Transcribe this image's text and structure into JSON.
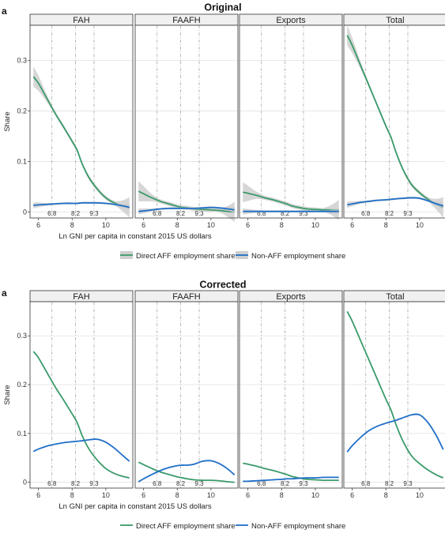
{
  "figure": {
    "x_axis_label": "Ln GNI per capita in constant 2015 US dollars",
    "y_axis_label": "Share",
    "legend": {
      "direct_label": "Direct AFF employment share",
      "nonaff_label": "Non-AFF employment share"
    },
    "colors": {
      "direct": "#3a9a6a",
      "nonaff": "#1f6fc8",
      "band": "#c8c8c8",
      "strip": "#f0f0f0"
    }
  },
  "chart_data": [
    {
      "type": "line",
      "section_title": "Original",
      "panel_letter": "a",
      "facets": [
        "FAH",
        "FAAFH",
        "Exports",
        "Total"
      ],
      "x_ticks": [
        6,
        8,
        10
      ],
      "xlim": [
        5.5,
        11.6
      ],
      "y_ticks": [
        0,
        0.1,
        0.2,
        0.3
      ],
      "y_tick_labels": [
        "0",
        "0.1",
        "0.2",
        "0.3"
      ],
      "ylim": [
        -0.012,
        0.37
      ],
      "vlines": [
        6.8,
        8.2,
        9.3
      ],
      "vline_labels": [
        "6.8",
        "8.2",
        "9.3"
      ],
      "confidence_band": true,
      "x": [
        5.7,
        6.0,
        6.5,
        7.0,
        7.5,
        8.0,
        8.3,
        8.6,
        9.0,
        9.5,
        10.0,
        10.5,
        11.0,
        11.4
      ],
      "panels": [
        {
          "facet": "FAH",
          "series": [
            {
              "name": "Direct AFF employment share",
              "values": [
                0.268,
                0.255,
                0.225,
                0.195,
                0.168,
                0.14,
                0.122,
                0.095,
                0.068,
                0.045,
                0.028,
                0.018,
                0.012,
                0.009
              ]
            },
            {
              "name": "Non-AFF employment share",
              "values": [
                0.013,
                0.014,
                0.015,
                0.016,
                0.017,
                0.017,
                0.017,
                0.018,
                0.018,
                0.018,
                0.017,
                0.015,
                0.012,
                0.009
              ]
            }
          ]
        },
        {
          "facet": "FAAFH",
          "series": [
            {
              "name": "Direct AFF employment share",
              "values": [
                0.041,
                0.036,
                0.028,
                0.021,
                0.016,
                0.011,
                0.009,
                0.008,
                0.006,
                0.005,
                0.004,
                0.003,
                0.001,
                0.0
              ]
            },
            {
              "name": "Non-AFF employment share",
              "values": [
                0.001,
                0.002,
                0.004,
                0.006,
                0.007,
                0.007,
                0.007,
                0.007,
                0.007,
                0.008,
                0.009,
                0.008,
                0.006,
                0.004
              ]
            }
          ]
        },
        {
          "facet": "Exports",
          "series": [
            {
              "name": "Direct AFF employment share",
              "values": [
                0.039,
                0.037,
                0.033,
                0.028,
                0.024,
                0.019,
                0.016,
                0.012,
                0.009,
                0.006,
                0.005,
                0.004,
                0.004,
                0.004
              ]
            },
            {
              "name": "Non-AFF employment share",
              "values": [
                0.001,
                0.001,
                0.001,
                0.001,
                0.001,
                0.001,
                0.001,
                0.001,
                0.001,
                0.001,
                0.001,
                0.001,
                0.001,
                0.001
              ]
            }
          ]
        },
        {
          "facet": "Total",
          "series": [
            {
              "name": "Direct AFF employment share",
              "values": [
                0.35,
                0.33,
                0.29,
                0.25,
                0.21,
                0.17,
                0.148,
                0.118,
                0.085,
                0.055,
                0.038,
                0.025,
                0.015,
                0.009
              ]
            },
            {
              "name": "Non-AFF employment share",
              "values": [
                0.014,
                0.016,
                0.019,
                0.021,
                0.023,
                0.024,
                0.025,
                0.026,
                0.027,
                0.028,
                0.027,
                0.022,
                0.016,
                0.012
              ]
            }
          ]
        }
      ]
    },
    {
      "type": "line",
      "section_title": "Corrected",
      "panel_letter": "a",
      "facets": [
        "FAH",
        "FAAFH",
        "Exports",
        "Total"
      ],
      "x_ticks": [
        6,
        8,
        10
      ],
      "xlim": [
        5.5,
        11.6
      ],
      "y_ticks": [
        0,
        0.1,
        0.2,
        0.3
      ],
      "y_tick_labels": [
        "0",
        "0.1",
        "0.2",
        "0.3"
      ],
      "ylim": [
        -0.012,
        0.37
      ],
      "vlines": [
        6.8,
        8.2,
        9.3
      ],
      "vline_labels": [
        "6.8",
        "8.2",
        "9.3"
      ],
      "confidence_band": false,
      "x": [
        5.7,
        6.0,
        6.5,
        7.0,
        7.5,
        8.0,
        8.3,
        8.6,
        9.0,
        9.5,
        10.0,
        10.5,
        11.0,
        11.4
      ],
      "panels": [
        {
          "facet": "FAH",
          "series": [
            {
              "name": "Direct AFF employment share",
              "values": [
                0.268,
                0.255,
                0.225,
                0.195,
                0.168,
                0.14,
                0.122,
                0.095,
                0.068,
                0.045,
                0.028,
                0.018,
                0.012,
                0.009
              ]
            },
            {
              "name": "Non-AFF employment share",
              "values": [
                0.063,
                0.068,
                0.074,
                0.078,
                0.081,
                0.083,
                0.084,
                0.085,
                0.087,
                0.088,
                0.082,
                0.07,
                0.055,
                0.043
              ]
            }
          ]
        },
        {
          "facet": "FAAFH",
          "series": [
            {
              "name": "Direct AFF employment share",
              "values": [
                0.041,
                0.036,
                0.028,
                0.021,
                0.016,
                0.011,
                0.009,
                0.007,
                0.005,
                0.004,
                0.004,
                0.003,
                0.001,
                0.0
              ]
            },
            {
              "name": "Non-AFF employment share",
              "values": [
                0.001,
                0.007,
                0.016,
                0.024,
                0.03,
                0.034,
                0.035,
                0.035,
                0.037,
                0.043,
                0.044,
                0.038,
                0.027,
                0.015
              ]
            }
          ]
        },
        {
          "facet": "Exports",
          "series": [
            {
              "name": "Direct AFF employment share",
              "values": [
                0.039,
                0.037,
                0.033,
                0.028,
                0.024,
                0.019,
                0.016,
                0.012,
                0.009,
                0.006,
                0.005,
                0.004,
                0.004,
                0.004
              ]
            },
            {
              "name": "Non-AFF employment share",
              "values": [
                0.002,
                0.002,
                0.003,
                0.004,
                0.005,
                0.006,
                0.007,
                0.007,
                0.008,
                0.009,
                0.009,
                0.01,
                0.01,
                0.01
              ]
            }
          ]
        },
        {
          "facet": "Total",
          "series": [
            {
              "name": "Direct AFF employment share",
              "values": [
                0.35,
                0.33,
                0.29,
                0.25,
                0.21,
                0.17,
                0.148,
                0.118,
                0.085,
                0.055,
                0.038,
                0.025,
                0.015,
                0.009
              ]
            },
            {
              "name": "Non-AFF employment share",
              "values": [
                0.062,
                0.075,
                0.092,
                0.106,
                0.115,
                0.121,
                0.124,
                0.127,
                0.132,
                0.138,
                0.138,
                0.122,
                0.095,
                0.067
              ]
            }
          ]
        }
      ]
    }
  ]
}
